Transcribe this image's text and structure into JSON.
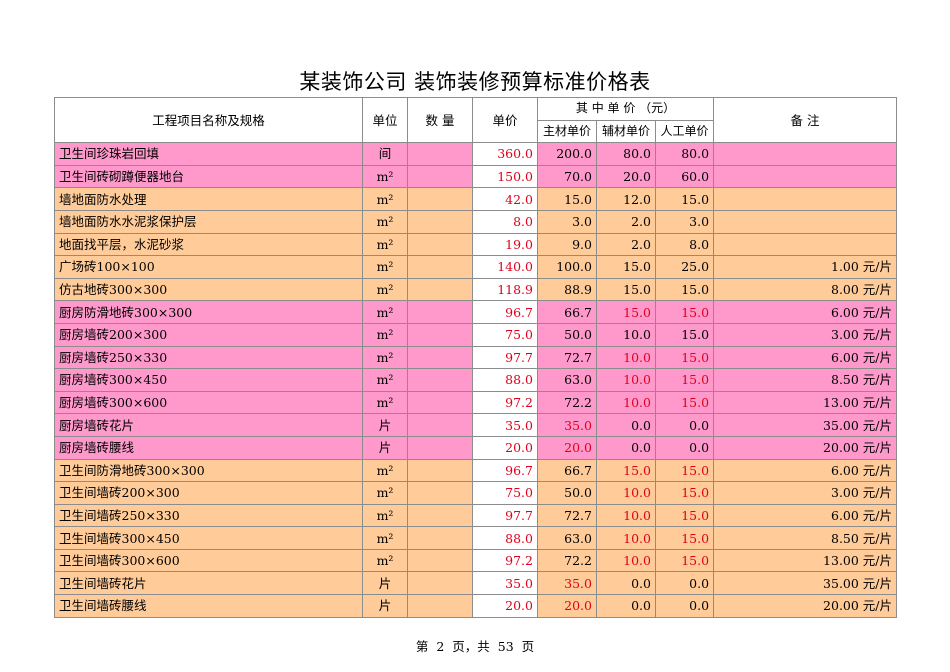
{
  "title": "某装饰公司 装饰装修预算标准价格表",
  "header": {
    "name": "工程项目名称及规格",
    "unit": "单位",
    "qty": "数 量",
    "price": "单价",
    "breakdown": "其 中 单 价 （元）",
    "main": "主材单价",
    "aux": "辅材单价",
    "labor": "人工单价",
    "note": "备 注"
  },
  "rows": [
    {
      "name": "卫生间珍珠岩回填",
      "unit": "间",
      "qty": "",
      "price": "360.0",
      "main": "200.0",
      "aux": "80.0",
      "labor": "80.0",
      "note": "",
      "band": "pink",
      "red": []
    },
    {
      "name": "卫生间砖砌蹲便器地台",
      "unit": "m²",
      "qty": "",
      "price": "150.0",
      "main": "70.0",
      "aux": "20.0",
      "labor": "60.0",
      "note": "",
      "band": "pink",
      "red": []
    },
    {
      "name": "墙地面防水处理",
      "unit": "m²",
      "qty": "",
      "price": "42.0",
      "main": "15.0",
      "aux": "12.0",
      "labor": "15.0",
      "note": "",
      "band": "peach",
      "red": []
    },
    {
      "name": "墙地面防水水泥浆保护层",
      "unit": "m²",
      "qty": "",
      "price": "8.0",
      "main": "3.0",
      "aux": "2.0",
      "labor": "3.0",
      "note": "",
      "band": "peach",
      "red": []
    },
    {
      "name": "地面找平层，水泥砂浆",
      "unit": "m²",
      "qty": "",
      "price": "19.0",
      "main": "9.0",
      "aux": "2.0",
      "labor": "8.0",
      "note": "",
      "band": "peach",
      "red": []
    },
    {
      "name": "广场砖100×100",
      "unit": "m²",
      "qty": "",
      "price": "140.0",
      "main": "100.0",
      "aux": "15.0",
      "labor": "25.0",
      "note": "1.00 元/片",
      "band": "peach",
      "red": []
    },
    {
      "name": "仿古地砖300×300",
      "unit": "m²",
      "qty": "",
      "price": "118.9",
      "main": "88.9",
      "aux": "15.0",
      "labor": "15.0",
      "note": "8.00 元/片",
      "band": "peach",
      "red": []
    },
    {
      "name": "厨房防滑地砖300×300",
      "unit": "m²",
      "qty": "",
      "price": "96.7",
      "main": "66.7",
      "aux": "15.0",
      "labor": "15.0",
      "note": "6.00 元/片",
      "band": "pink",
      "red": [
        "aux",
        "labor"
      ]
    },
    {
      "name": "厨房墙砖200×300",
      "unit": "m²",
      "qty": "",
      "price": "75.0",
      "main": "50.0",
      "aux": "10.0",
      "labor": "15.0",
      "note": "3.00 元/片",
      "band": "pink",
      "red": []
    },
    {
      "name": "厨房墙砖250×330",
      "unit": "m²",
      "qty": "",
      "price": "97.7",
      "main": "72.7",
      "aux": "10.0",
      "labor": "15.0",
      "note": "6.00 元/片",
      "band": "pink",
      "red": [
        "aux",
        "labor"
      ]
    },
    {
      "name": "厨房墙砖300×450",
      "unit": "m²",
      "qty": "",
      "price": "88.0",
      "main": "63.0",
      "aux": "10.0",
      "labor": "15.0",
      "note": "8.50 元/片",
      "band": "pink",
      "red": [
        "aux",
        "labor"
      ]
    },
    {
      "name": "厨房墙砖300×600",
      "unit": "m²",
      "qty": "",
      "price": "97.2",
      "main": "72.2",
      "aux": "10.0",
      "labor": "15.0",
      "note": "13.00 元/片",
      "band": "pink",
      "red": [
        "aux",
        "labor"
      ]
    },
    {
      "name": "厨房墙砖花片",
      "unit": "片",
      "qty": "",
      "price": "35.0",
      "main": "35.0",
      "aux": "0.0",
      "labor": "0.0",
      "note": "35.00 元/片",
      "band": "pink",
      "red": [
        "main"
      ]
    },
    {
      "name": "厨房墙砖腰线",
      "unit": "片",
      "qty": "",
      "price": "20.0",
      "main": "20.0",
      "aux": "0.0",
      "labor": "0.0",
      "note": "20.00 元/片",
      "band": "pink",
      "red": [
        "main"
      ]
    },
    {
      "name": "卫生间防滑地砖300×300",
      "unit": "m²",
      "qty": "",
      "price": "96.7",
      "main": "66.7",
      "aux": "15.0",
      "labor": "15.0",
      "note": "6.00 元/片",
      "band": "peach",
      "red": [
        "aux",
        "labor"
      ]
    },
    {
      "name": "卫生间墙砖200×300",
      "unit": "m²",
      "qty": "",
      "price": "75.0",
      "main": "50.0",
      "aux": "10.0",
      "labor": "15.0",
      "note": "3.00 元/片",
      "band": "peach",
      "red": [
        "aux",
        "labor"
      ]
    },
    {
      "name": "卫生间墙砖250×330",
      "unit": "m²",
      "qty": "",
      "price": "97.7",
      "main": "72.7",
      "aux": "10.0",
      "labor": "15.0",
      "note": "6.00 元/片",
      "band": "peach",
      "red": [
        "aux",
        "labor"
      ]
    },
    {
      "name": "卫生间墙砖300×450",
      "unit": "m²",
      "qty": "",
      "price": "88.0",
      "main": "63.0",
      "aux": "10.0",
      "labor": "15.0",
      "note": "8.50 元/片",
      "band": "peach",
      "red": [
        "aux",
        "labor"
      ]
    },
    {
      "name": "卫生间墙砖300×600",
      "unit": "m²",
      "qty": "",
      "price": "97.2",
      "main": "72.2",
      "aux": "10.0",
      "labor": "15.0",
      "note": "13.00 元/片",
      "band": "peach",
      "red": [
        "aux",
        "labor"
      ]
    },
    {
      "name": "卫生间墙砖花片",
      "unit": "片",
      "qty": "",
      "price": "35.0",
      "main": "35.0",
      "aux": "0.0",
      "labor": "0.0",
      "note": "35.00 元/片",
      "band": "peach",
      "red": [
        "main"
      ]
    },
    {
      "name": "卫生间墙砖腰线",
      "unit": "片",
      "qty": "",
      "price": "20.0",
      "main": "20.0",
      "aux": "0.0",
      "labor": "0.0",
      "note": "20.00 元/片",
      "band": "peach",
      "red": [
        "main"
      ]
    }
  ],
  "footer": {
    "page_prefix": "第",
    "page": "2",
    "page_mid": "页，共",
    "total": "53",
    "page_suffix": "页"
  },
  "colors": {
    "pink_band": "#ff99cc",
    "peach_band": "#ffcc99",
    "red_text": "#e0001b"
  }
}
